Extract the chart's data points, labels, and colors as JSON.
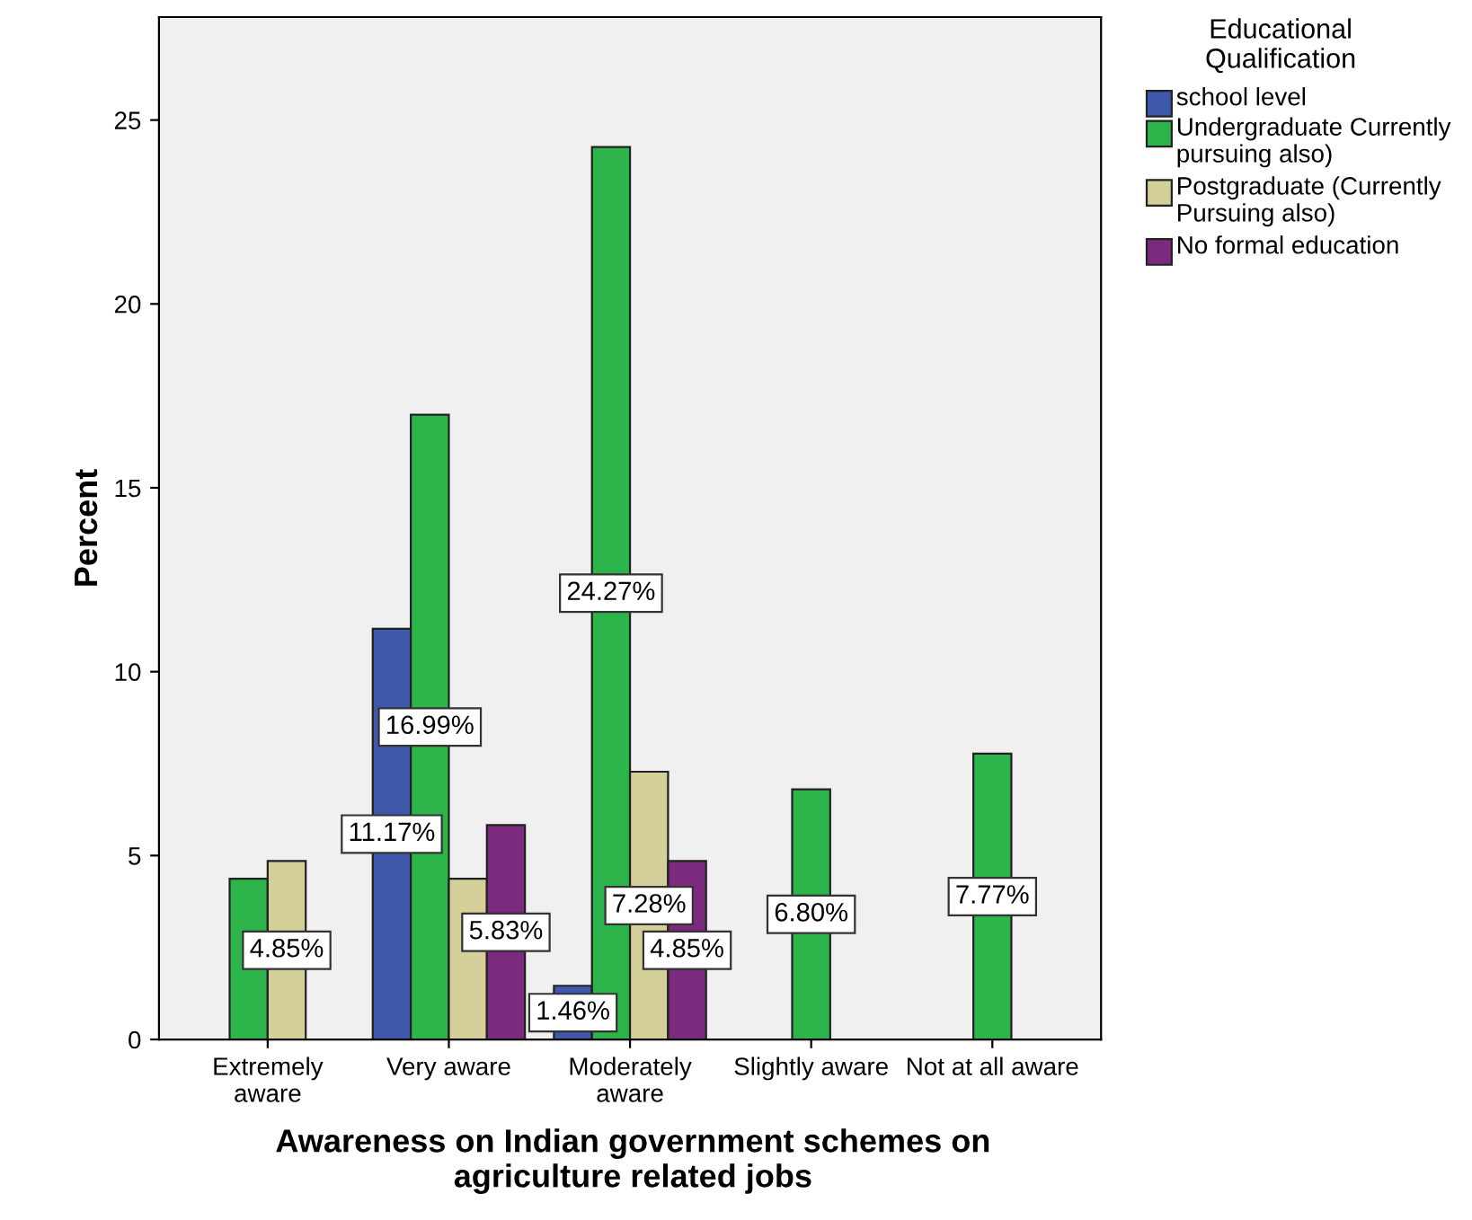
{
  "chart_data": {
    "type": "bar",
    "xlabel": "Awareness on Indian government schemes on agriculture related jobs",
    "ylabel": "Percent",
    "legend_title": "Educational Qualification",
    "categories": [
      "Extremely aware",
      "Very aware",
      "Moderately aware",
      "Slightly aware",
      "Not at all aware"
    ],
    "series": [
      {
        "name": "school level",
        "color": "#3e58ac",
        "values": [
          null,
          11.17,
          1.46,
          null,
          null
        ],
        "value_labels": [
          null,
          "11.17%",
          "1.46%",
          null,
          null
        ]
      },
      {
        "name": "Undergraduate Currently pursuing also)",
        "color": "#2db44a",
        "values": [
          4.37,
          16.99,
          24.27,
          6.8,
          7.77
        ],
        "value_labels": [
          null,
          "16.99%",
          "24.27%",
          "6.80%",
          "7.77%"
        ]
      },
      {
        "name": "Postgraduate (Currently Pursuing also)",
        "color": "#d5cf9a",
        "values": [
          4.85,
          4.37,
          7.28,
          null,
          null
        ],
        "value_labels": [
          "4.85%",
          null,
          "7.28%",
          null,
          null
        ]
      },
      {
        "name": "No formal education",
        "color": "#7b2a7e",
        "values": [
          null,
          5.83,
          4.85,
          null,
          null
        ],
        "value_labels": [
          null,
          "5.83%",
          "4.85%",
          null,
          null
        ]
      }
    ],
    "ylim": [
      0,
      27.8
    ],
    "yticks": [
      0,
      5,
      10,
      15,
      20,
      25
    ],
    "grid": false,
    "legend": "top right"
  }
}
